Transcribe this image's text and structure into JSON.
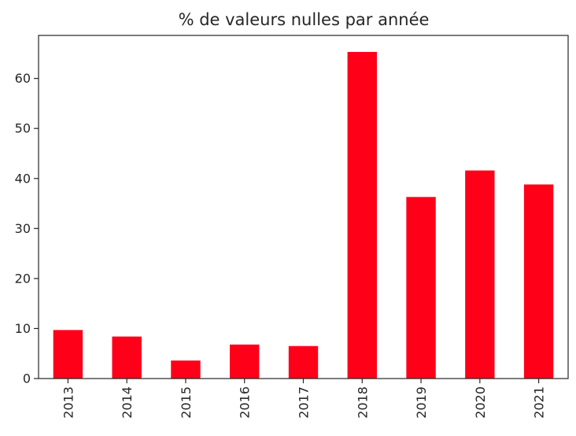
{
  "chart_data": {
    "type": "bar",
    "title": "% de valeurs nulles par année",
    "xlabel": "",
    "ylabel": "",
    "categories": [
      "2013",
      "2014",
      "2015",
      "2016",
      "2017",
      "2018",
      "2019",
      "2020",
      "2021"
    ],
    "values": [
      9.7,
      8.4,
      3.6,
      6.8,
      6.5,
      65.3,
      36.3,
      41.6,
      38.8
    ],
    "ylim": [
      0,
      68.6
    ],
    "yticks": [
      0,
      10,
      20,
      30,
      40,
      50,
      60
    ],
    "bar_color": "#ff0019",
    "grid": false,
    "legend": "none"
  }
}
